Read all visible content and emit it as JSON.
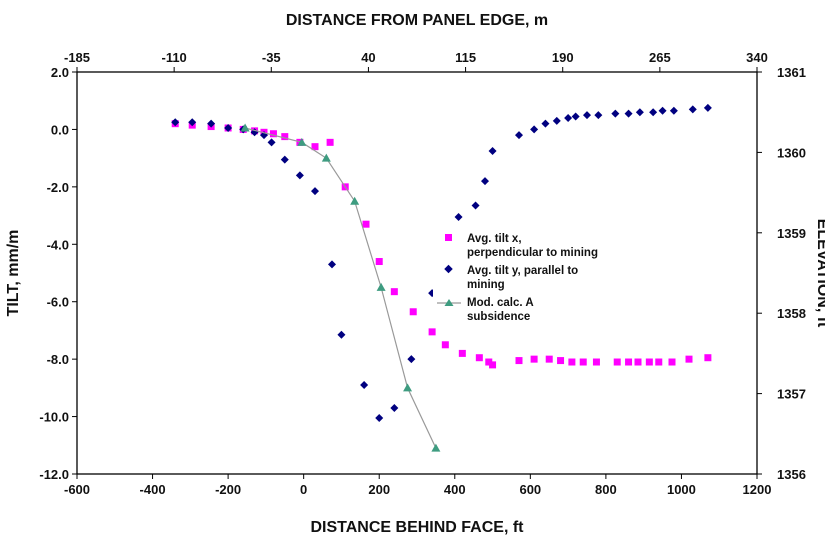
{
  "chart_data": {
    "type": "scatter",
    "xlabel": "DISTANCE BEHIND FACE, ft",
    "x2label": "DISTANCE FROM PANEL EDGE, m",
    "ylabel": "TILT, mm/m",
    "y2label": "ELEVATION, ft",
    "xlim": [
      -600,
      1200
    ],
    "ylim": [
      -12,
      2
    ],
    "x2lim": [
      -185,
      340
    ],
    "y2lim": [
      1356,
      1361
    ],
    "grid": false,
    "legend_position": "center-right",
    "x_ticks": [
      "-600",
      "-400",
      "-200",
      "0",
      "200",
      "400",
      "600",
      "800",
      "1000",
      "1200"
    ],
    "y_ticks": [
      "2.0",
      "0.0",
      "-2.0",
      "-4.0",
      "-6.0",
      "-8.0",
      "-10.0",
      "-12.0"
    ],
    "x2_ticks": [
      "-185",
      "-110",
      "-35",
      "40",
      "115",
      "190",
      "265",
      "340"
    ],
    "y2_ticks": [
      "1361",
      "1360",
      "1359",
      "1358",
      "1357",
      "1356"
    ],
    "series": [
      {
        "name": "Avg. tilt x, perpendicular to mining",
        "marker": "square",
        "color": "#ff00ff",
        "points": [
          [
            -340,
            0.2
          ],
          [
            -295,
            0.15
          ],
          [
            -245,
            0.1
          ],
          [
            -200,
            0.05
          ],
          [
            -160,
            0.0
          ],
          [
            -130,
            -0.05
          ],
          [
            -105,
            -0.1
          ],
          [
            -80,
            -0.15
          ],
          [
            -50,
            -0.25
          ],
          [
            -10,
            -0.45
          ],
          [
            30,
            -0.6
          ],
          [
            70,
            -0.45
          ],
          [
            110,
            -2.0
          ],
          [
            165,
            -3.3
          ],
          [
            200,
            -4.6
          ],
          [
            240,
            -5.65
          ],
          [
            290,
            -6.35
          ],
          [
            340,
            -7.05
          ],
          [
            375,
            -7.5
          ],
          [
            420,
            -7.8
          ],
          [
            465,
            -7.95
          ],
          [
            490,
            -8.1
          ],
          [
            500,
            -8.2
          ],
          [
            570,
            -8.05
          ],
          [
            610,
            -8.0
          ],
          [
            650,
            -8.0
          ],
          [
            680,
            -8.05
          ],
          [
            710,
            -8.1
          ],
          [
            740,
            -8.1
          ],
          [
            775,
            -8.1
          ],
          [
            830,
            -8.1
          ],
          [
            860,
            -8.1
          ],
          [
            885,
            -8.1
          ],
          [
            915,
            -8.1
          ],
          [
            940,
            -8.1
          ],
          [
            975,
            -8.1
          ],
          [
            1020,
            -8.0
          ],
          [
            1070,
            -7.95
          ]
        ]
      },
      {
        "name": "Avg. tilt y, parallel to mining",
        "marker": "diamond",
        "color": "#000080",
        "points": [
          [
            -340,
            0.25
          ],
          [
            -295,
            0.25
          ],
          [
            -245,
            0.2
          ],
          [
            -200,
            0.05
          ],
          [
            -160,
            0.0
          ],
          [
            -130,
            -0.1
          ],
          [
            -105,
            -0.2
          ],
          [
            -85,
            -0.45
          ],
          [
            -50,
            -1.05
          ],
          [
            -10,
            -1.6
          ],
          [
            30,
            -2.15
          ],
          [
            75,
            -4.7
          ],
          [
            100,
            -7.15
          ],
          [
            160,
            -8.9
          ],
          [
            200,
            -10.05
          ],
          [
            240,
            -9.7
          ],
          [
            285,
            -8.0
          ],
          [
            340,
            -5.7
          ],
          [
            380,
            -4.0
          ],
          [
            410,
            -3.05
          ],
          [
            455,
            -2.65
          ],
          [
            480,
            -1.8
          ],
          [
            500,
            -0.75
          ],
          [
            570,
            -0.2
          ],
          [
            610,
            0.0
          ],
          [
            640,
            0.2
          ],
          [
            670,
            0.3
          ],
          [
            700,
            0.4
          ],
          [
            720,
            0.45
          ],
          [
            750,
            0.5
          ],
          [
            780,
            0.5
          ],
          [
            825,
            0.55
          ],
          [
            860,
            0.55
          ],
          [
            890,
            0.6
          ],
          [
            925,
            0.6
          ],
          [
            950,
            0.65
          ],
          [
            980,
            0.65
          ],
          [
            1030,
            0.7
          ],
          [
            1070,
            0.75
          ]
        ]
      },
      {
        "name": "Mod. calc. A subsidence",
        "marker": "triangle",
        "color": "#3e9c80",
        "line_color": "#999999",
        "points": [
          [
            -155,
            0.05
          ],
          [
            -5,
            -0.45
          ],
          [
            60,
            -1.0
          ],
          [
            135,
            -2.5
          ],
          [
            205,
            -5.5
          ],
          [
            275,
            -9.0
          ],
          [
            350,
            -11.1
          ]
        ]
      }
    ]
  }
}
